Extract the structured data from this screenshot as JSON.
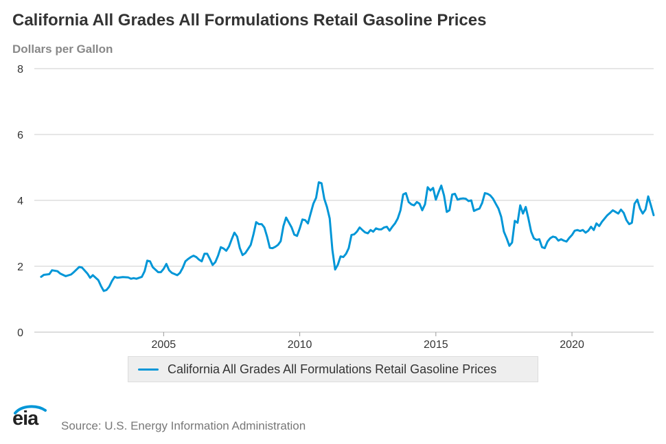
{
  "title": "California All Grades All Formulations Retail Gasoline Prices",
  "subtitle": "Dollars per Gallon",
  "legend": {
    "label": "California All Grades All Formulations Retail Gasoline Prices",
    "color": "#0096d7"
  },
  "source": "Source: U.S. Energy Information Administration",
  "logo": {
    "text": "eia",
    "icon": "eia-logo-icon"
  },
  "chart_data": {
    "type": "line",
    "title": "California All Grades All Formulations Retail Gasoline Prices",
    "ylabel": "Dollars per Gallon",
    "xlabel": "",
    "xlim": [
      2000.5,
      2023.0
    ],
    "ylim": [
      0,
      8
    ],
    "yticks": [
      0,
      2,
      4,
      6,
      8
    ],
    "xticks": [
      2005,
      2010,
      2015,
      2020
    ],
    "grid": "horizontal",
    "legend_position": "bottom",
    "series": [
      {
        "name": "California All Grades All Formulations Retail Gasoline Prices",
        "color": "#0096d7",
        "points": [
          [
            2000.5,
            1.68
          ],
          [
            2000.6,
            1.74
          ],
          [
            2000.8,
            1.76
          ],
          [
            2000.9,
            1.88
          ],
          [
            2001.1,
            1.85
          ],
          [
            2001.2,
            1.78
          ],
          [
            2001.4,
            1.7
          ],
          [
            2001.6,
            1.75
          ],
          [
            2001.7,
            1.82
          ],
          [
            2001.9,
            1.98
          ],
          [
            2002.0,
            1.96
          ],
          [
            2002.2,
            1.78
          ],
          [
            2002.3,
            1.65
          ],
          [
            2002.4,
            1.73
          ],
          [
            2002.6,
            1.58
          ],
          [
            2002.7,
            1.4
          ],
          [
            2002.8,
            1.25
          ],
          [
            2002.9,
            1.28
          ],
          [
            2003.0,
            1.38
          ],
          [
            2003.1,
            1.55
          ],
          [
            2003.2,
            1.68
          ],
          [
            2003.3,
            1.65
          ],
          [
            2003.5,
            1.67
          ],
          [
            2003.7,
            1.66
          ],
          [
            2003.8,
            1.62
          ],
          [
            2003.9,
            1.64
          ],
          [
            2004.0,
            1.62
          ],
          [
            2004.2,
            1.68
          ],
          [
            2004.3,
            1.85
          ],
          [
            2004.4,
            2.17
          ],
          [
            2004.5,
            2.15
          ],
          [
            2004.6,
            1.97
          ],
          [
            2004.8,
            1.82
          ],
          [
            2004.9,
            1.82
          ],
          [
            2005.0,
            1.92
          ],
          [
            2005.1,
            2.07
          ],
          [
            2005.2,
            1.88
          ],
          [
            2005.3,
            1.8
          ],
          [
            2005.5,
            1.73
          ],
          [
            2005.6,
            1.8
          ],
          [
            2005.7,
            1.95
          ],
          [
            2005.8,
            2.15
          ],
          [
            2005.9,
            2.22
          ],
          [
            2006.0,
            2.28
          ],
          [
            2006.1,
            2.32
          ],
          [
            2006.2,
            2.28
          ],
          [
            2006.3,
            2.2
          ],
          [
            2006.4,
            2.15
          ],
          [
            2006.5,
            2.38
          ],
          [
            2006.6,
            2.38
          ],
          [
            2006.7,
            2.22
          ],
          [
            2006.8,
            2.04
          ],
          [
            2006.9,
            2.13
          ],
          [
            2007.0,
            2.32
          ],
          [
            2007.1,
            2.58
          ],
          [
            2007.2,
            2.54
          ],
          [
            2007.3,
            2.47
          ],
          [
            2007.4,
            2.6
          ],
          [
            2007.5,
            2.82
          ],
          [
            2007.6,
            3.02
          ],
          [
            2007.7,
            2.9
          ],
          [
            2007.8,
            2.55
          ],
          [
            2007.9,
            2.34
          ],
          [
            2008.0,
            2.4
          ],
          [
            2008.1,
            2.52
          ],
          [
            2008.2,
            2.65
          ],
          [
            2008.3,
            2.97
          ],
          [
            2008.4,
            3.34
          ],
          [
            2008.5,
            3.28
          ],
          [
            2008.6,
            3.28
          ],
          [
            2008.7,
            3.18
          ],
          [
            2008.8,
            2.9
          ],
          [
            2008.9,
            2.56
          ],
          [
            2009.0,
            2.55
          ],
          [
            2009.1,
            2.59
          ],
          [
            2009.2,
            2.65
          ],
          [
            2009.3,
            2.76
          ],
          [
            2009.4,
            3.22
          ],
          [
            2009.5,
            3.48
          ],
          [
            2009.6,
            3.33
          ],
          [
            2009.7,
            3.18
          ],
          [
            2009.8,
            2.96
          ],
          [
            2009.9,
            2.92
          ],
          [
            2010.0,
            3.15
          ],
          [
            2010.1,
            3.42
          ],
          [
            2010.2,
            3.4
          ],
          [
            2010.3,
            3.3
          ],
          [
            2010.4,
            3.6
          ],
          [
            2010.5,
            3.9
          ],
          [
            2010.6,
            4.08
          ],
          [
            2010.7,
            4.55
          ],
          [
            2010.8,
            4.52
          ],
          [
            2010.9,
            4.05
          ],
          [
            2011.0,
            3.8
          ],
          [
            2011.1,
            3.45
          ],
          [
            2011.2,
            2.5
          ],
          [
            2011.3,
            1.9
          ],
          [
            2011.4,
            2.05
          ],
          [
            2011.5,
            2.3
          ],
          [
            2011.6,
            2.28
          ],
          [
            2011.7,
            2.38
          ],
          [
            2011.8,
            2.55
          ],
          [
            2011.9,
            2.95
          ],
          [
            2012.0,
            2.97
          ],
          [
            2012.1,
            3.05
          ],
          [
            2012.2,
            3.18
          ],
          [
            2012.3,
            3.1
          ],
          [
            2012.4,
            3.03
          ],
          [
            2012.5,
            3.0
          ],
          [
            2012.6,
            3.1
          ],
          [
            2012.7,
            3.05
          ],
          [
            2012.8,
            3.15
          ],
          [
            2012.9,
            3.12
          ],
          [
            2013.0,
            3.12
          ],
          [
            2013.1,
            3.18
          ],
          [
            2013.2,
            3.2
          ],
          [
            2013.3,
            3.08
          ],
          [
            2013.4,
            3.2
          ],
          [
            2013.5,
            3.3
          ],
          [
            2013.6,
            3.45
          ],
          [
            2013.7,
            3.7
          ],
          [
            2013.8,
            4.18
          ],
          [
            2013.9,
            4.22
          ],
          [
            2014.0,
            3.95
          ],
          [
            2014.1,
            3.88
          ],
          [
            2014.2,
            3.85
          ],
          [
            2014.3,
            3.95
          ],
          [
            2014.4,
            3.9
          ],
          [
            2014.5,
            3.7
          ],
          [
            2014.6,
            3.88
          ],
          [
            2014.7,
            4.4
          ],
          [
            2014.8,
            4.3
          ],
          [
            2014.9,
            4.38
          ],
          [
            2015.0,
            4.02
          ],
          [
            2015.1,
            4.25
          ],
          [
            2015.2,
            4.45
          ],
          [
            2015.3,
            4.15
          ],
          [
            2015.4,
            3.65
          ],
          [
            2015.5,
            3.7
          ],
          [
            2015.6,
            4.18
          ],
          [
            2015.7,
            4.2
          ],
          [
            2015.8,
            4.02
          ],
          [
            2015.9,
            4.05
          ],
          [
            2016.0,
            4.06
          ],
          [
            2016.1,
            4.05
          ],
          [
            2016.2,
            3.98
          ],
          [
            2016.3,
            4.0
          ],
          [
            2016.4,
            3.68
          ],
          [
            2016.5,
            3.72
          ],
          [
            2016.6,
            3.75
          ],
          [
            2016.7,
            3.92
          ],
          [
            2016.8,
            4.22
          ],
          [
            2016.9,
            4.2
          ],
          [
            2017.0,
            4.15
          ],
          [
            2017.1,
            4.05
          ],
          [
            2017.2,
            3.9
          ],
          [
            2017.3,
            3.75
          ],
          [
            2017.4,
            3.5
          ],
          [
            2017.5,
            3.05
          ],
          [
            2017.6,
            2.85
          ],
          [
            2017.7,
            2.62
          ],
          [
            2017.8,
            2.72
          ],
          [
            2017.9,
            3.38
          ],
          [
            2018.0,
            3.32
          ],
          [
            2018.1,
            3.85
          ],
          [
            2018.2,
            3.6
          ],
          [
            2018.3,
            3.8
          ],
          [
            2018.4,
            3.45
          ],
          [
            2018.5,
            3.05
          ],
          [
            2018.6,
            2.85
          ],
          [
            2018.7,
            2.8
          ],
          [
            2018.8,
            2.82
          ],
          [
            2018.9,
            2.58
          ],
          [
            2019.0,
            2.55
          ],
          [
            2019.1,
            2.75
          ],
          [
            2019.2,
            2.85
          ],
          [
            2019.3,
            2.9
          ],
          [
            2019.4,
            2.88
          ],
          [
            2019.5,
            2.78
          ],
          [
            2019.6,
            2.82
          ],
          [
            2019.7,
            2.78
          ],
          [
            2019.8,
            2.75
          ],
          [
            2019.9,
            2.86
          ],
          [
            2020.0,
            2.95
          ],
          [
            2020.1,
            3.08
          ],
          [
            2020.2,
            3.1
          ],
          [
            2020.3,
            3.07
          ],
          [
            2020.4,
            3.1
          ],
          [
            2020.5,
            3.02
          ],
          [
            2020.6,
            3.08
          ],
          [
            2020.7,
            3.2
          ],
          [
            2020.8,
            3.1
          ],
          [
            2020.9,
            3.3
          ],
          [
            2021.0,
            3.22
          ],
          [
            2021.1,
            3.35
          ],
          [
            2021.2,
            3.45
          ],
          [
            2021.3,
            3.55
          ],
          [
            2021.4,
            3.62
          ],
          [
            2021.5,
            3.7
          ],
          [
            2021.6,
            3.65
          ],
          [
            2021.7,
            3.6
          ],
          [
            2021.8,
            3.72
          ],
          [
            2021.9,
            3.62
          ],
          [
            2022.0,
            3.4
          ],
          [
            2022.1,
            3.28
          ],
          [
            2022.2,
            3.32
          ],
          [
            2022.3,
            3.9
          ],
          [
            2022.4,
            4.02
          ],
          [
            2022.5,
            3.75
          ],
          [
            2022.6,
            3.6
          ],
          [
            2022.7,
            3.72
          ],
          [
            2022.8,
            4.12
          ],
          [
            2022.9,
            3.85
          ],
          [
            2023.0,
            3.55
          ]
        ]
      }
    ]
  }
}
